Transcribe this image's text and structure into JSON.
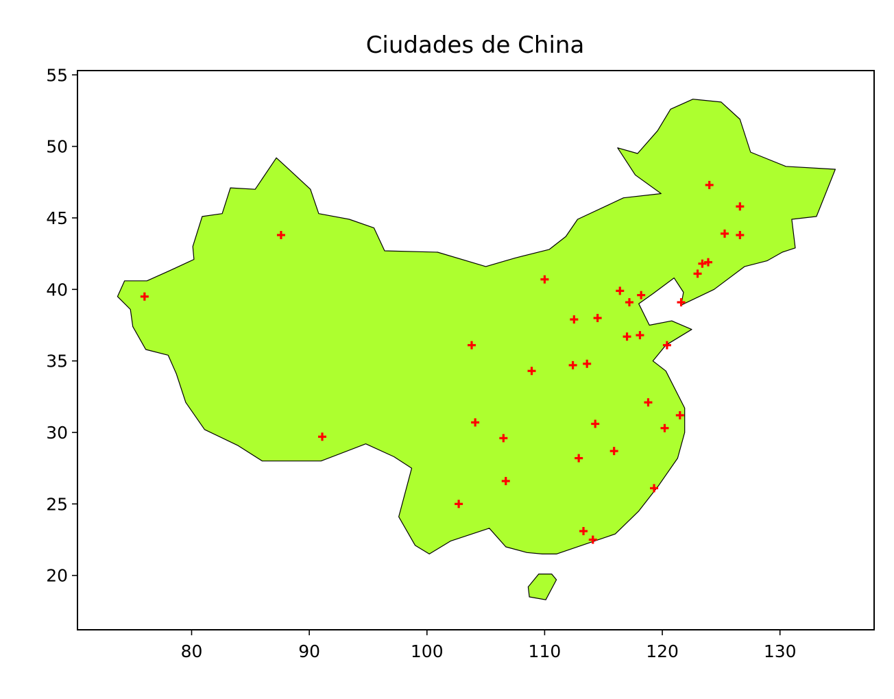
{
  "chart_data": {
    "type": "scatter",
    "title": "Ciudades de China",
    "xlabel": "",
    "ylabel": "",
    "xlim": [
      70.3,
      138
    ],
    "ylim": [
      16.2,
      55.3
    ],
    "xticks": [
      80,
      90,
      100,
      110,
      120,
      130
    ],
    "yticks": [
      20,
      25,
      30,
      35,
      40,
      45,
      50,
      55
    ],
    "grid": false,
    "marker": "plus",
    "colors": {
      "region_fill": "#adff2f",
      "region_edge": "#000000",
      "marker": "#ff0000",
      "axes": "#000000",
      "background": "#ffffff"
    },
    "region_outline": [
      [
        73.7,
        39.5
      ],
      [
        74.3,
        40.6
      ],
      [
        76.2,
        40.6
      ],
      [
        78.1,
        41.3
      ],
      [
        80.2,
        42.1
      ],
      [
        80.1,
        43.0
      ],
      [
        80.9,
        45.1
      ],
      [
        82.6,
        45.3
      ],
      [
        83.3,
        47.1
      ],
      [
        85.4,
        47.0
      ],
      [
        87.2,
        49.2
      ],
      [
        88.0,
        48.6
      ],
      [
        90.1,
        47.0
      ],
      [
        90.8,
        45.3
      ],
      [
        93.4,
        44.9
      ],
      [
        95.5,
        44.3
      ],
      [
        96.4,
        42.7
      ],
      [
        100.9,
        42.6
      ],
      [
        105.0,
        41.6
      ],
      [
        107.5,
        42.2
      ],
      [
        110.4,
        42.8
      ],
      [
        111.8,
        43.7
      ],
      [
        112.8,
        44.9
      ],
      [
        116.7,
        46.4
      ],
      [
        119.9,
        46.7
      ],
      [
        117.7,
        48.0
      ],
      [
        116.2,
        49.9
      ],
      [
        117.9,
        49.5
      ],
      [
        119.6,
        51.1
      ],
      [
        120.7,
        52.6
      ],
      [
        122.6,
        53.3
      ],
      [
        125.0,
        53.1
      ],
      [
        126.6,
        51.9
      ],
      [
        127.5,
        49.6
      ],
      [
        130.5,
        48.6
      ],
      [
        134.7,
        48.4
      ],
      [
        133.1,
        45.1
      ],
      [
        131.0,
        44.9
      ],
      [
        131.3,
        42.9
      ],
      [
        130.2,
        42.6
      ],
      [
        128.9,
        42.0
      ],
      [
        127.0,
        41.6
      ],
      [
        124.4,
        40.0
      ],
      [
        121.6,
        38.9
      ],
      [
        121.8,
        39.8
      ],
      [
        121.0,
        40.8
      ],
      [
        119.2,
        39.7
      ],
      [
        118.0,
        39.0
      ],
      [
        118.9,
        37.5
      ],
      [
        120.8,
        37.8
      ],
      [
        122.5,
        37.2
      ],
      [
        120.3,
        36.1
      ],
      [
        119.2,
        35.0
      ],
      [
        120.3,
        34.3
      ],
      [
        121.9,
        31.7
      ],
      [
        121.9,
        30.0
      ],
      [
        121.3,
        28.2
      ],
      [
        119.7,
        26.3
      ],
      [
        118.0,
        24.5
      ],
      [
        116.0,
        22.9
      ],
      [
        113.5,
        22.2
      ],
      [
        111.0,
        21.5
      ],
      [
        109.8,
        21.5
      ],
      [
        108.5,
        21.6
      ],
      [
        106.7,
        22.0
      ],
      [
        105.3,
        23.3
      ],
      [
        102.0,
        22.4
      ],
      [
        100.2,
        21.5
      ],
      [
        99.0,
        22.1
      ],
      [
        97.6,
        24.1
      ],
      [
        98.7,
        27.5
      ],
      [
        97.2,
        28.3
      ],
      [
        94.8,
        29.2
      ],
      [
        91.0,
        28.0
      ],
      [
        88.8,
        28.0
      ],
      [
        86.0,
        28.0
      ],
      [
        83.9,
        29.1
      ],
      [
        81.1,
        30.2
      ],
      [
        79.5,
        32.1
      ],
      [
        78.7,
        34.1
      ],
      [
        78.0,
        35.4
      ],
      [
        76.1,
        35.8
      ],
      [
        75.0,
        37.4
      ],
      [
        74.8,
        38.6
      ]
    ],
    "region_islands": [
      [
        [
          108.7,
          18.5
        ],
        [
          110.1,
          18.3
        ],
        [
          111.0,
          19.7
        ],
        [
          110.6,
          20.1
        ],
        [
          109.5,
          20.1
        ],
        [
          108.6,
          19.2
        ]
      ]
    ],
    "points": [
      {
        "x": 87.6,
        "y": 43.8
      },
      {
        "x": 76.0,
        "y": 39.5
      },
      {
        "x": 91.1,
        "y": 29.7
      },
      {
        "x": 103.8,
        "y": 36.1
      },
      {
        "x": 110.0,
        "y": 40.7
      },
      {
        "x": 116.4,
        "y": 39.9
      },
      {
        "x": 117.2,
        "y": 39.1
      },
      {
        "x": 118.2,
        "y": 39.6
      },
      {
        "x": 121.6,
        "y": 39.1
      },
      {
        "x": 112.5,
        "y": 37.9
      },
      {
        "x": 114.5,
        "y": 38.0
      },
      {
        "x": 117.0,
        "y": 36.7
      },
      {
        "x": 118.1,
        "y": 36.8
      },
      {
        "x": 120.4,
        "y": 36.1
      },
      {
        "x": 108.9,
        "y": 34.3
      },
      {
        "x": 112.4,
        "y": 34.7
      },
      {
        "x": 113.6,
        "y": 34.8
      },
      {
        "x": 118.8,
        "y": 32.1
      },
      {
        "x": 121.5,
        "y": 31.2
      },
      {
        "x": 120.2,
        "y": 30.3
      },
      {
        "x": 104.1,
        "y": 30.7
      },
      {
        "x": 106.5,
        "y": 29.6
      },
      {
        "x": 114.3,
        "y": 30.6
      },
      {
        "x": 112.9,
        "y": 28.2
      },
      {
        "x": 115.9,
        "y": 28.7
      },
      {
        "x": 106.7,
        "y": 26.6
      },
      {
        "x": 119.3,
        "y": 26.1
      },
      {
        "x": 102.7,
        "y": 25.0
      },
      {
        "x": 113.3,
        "y": 23.1
      },
      {
        "x": 114.1,
        "y": 22.5
      },
      {
        "x": 123.0,
        "y": 41.1
      },
      {
        "x": 123.4,
        "y": 41.8
      },
      {
        "x": 123.9,
        "y": 41.9
      },
      {
        "x": 125.3,
        "y": 43.9
      },
      {
        "x": 126.6,
        "y": 43.8
      },
      {
        "x": 126.6,
        "y": 45.8
      },
      {
        "x": 124.0,
        "y": 47.3
      }
    ]
  }
}
